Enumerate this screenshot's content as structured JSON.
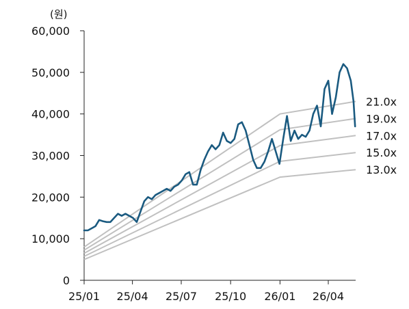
{
  "chart_data": {
    "type": "line",
    "ylabel": "(원)",
    "xlabel": "",
    "title": "",
    "ylim": [
      0,
      60000
    ],
    "xlim": [
      "2025-01-01",
      "2026-05-22"
    ],
    "yticks": [
      "0",
      "10,000",
      "20,000",
      "30,000",
      "40,000",
      "50,000",
      "60,000"
    ],
    "ytick_values": [
      0,
      10000,
      20000,
      30000,
      40000,
      50000,
      60000
    ],
    "xticks": [
      "25/01",
      "25/04",
      "25/07",
      "25/10",
      "26/01",
      "26/04"
    ],
    "xtick_values": [
      "2025-01-01",
      "2025-04-01",
      "2025-07-01",
      "2025-10-01",
      "2026-01-01",
      "2026-04-01"
    ],
    "grid": false,
    "series": [
      {
        "name": "",
        "color": "#1a5a80",
        "points": [
          [
            "2025-01-01",
            12000
          ],
          [
            "2025-01-08",
            12000
          ],
          [
            "2025-01-15",
            12500
          ],
          [
            "2025-01-22",
            13000
          ],
          [
            "2025-01-29",
            14500
          ],
          [
            "2025-02-05",
            14200
          ],
          [
            "2025-02-12",
            14000
          ],
          [
            "2025-02-19",
            14000
          ],
          [
            "2025-02-26",
            15000
          ],
          [
            "2025-03-05",
            16000
          ],
          [
            "2025-03-12",
            15500
          ],
          [
            "2025-03-19",
            16000
          ],
          [
            "2025-03-26",
            15500
          ],
          [
            "2025-04-02",
            15000
          ],
          [
            "2025-04-09",
            14000
          ],
          [
            "2025-04-16",
            16500
          ],
          [
            "2025-04-23",
            19000
          ],
          [
            "2025-04-30",
            20000
          ],
          [
            "2025-05-07",
            19500
          ],
          [
            "2025-05-14",
            20500
          ],
          [
            "2025-05-21",
            21000
          ],
          [
            "2025-05-28",
            21500
          ],
          [
            "2025-06-04",
            22000
          ],
          [
            "2025-06-11",
            21500
          ],
          [
            "2025-06-18",
            22500
          ],
          [
            "2025-06-25",
            23000
          ],
          [
            "2025-07-02",
            24000
          ],
          [
            "2025-07-09",
            25500
          ],
          [
            "2025-07-16",
            26000
          ],
          [
            "2025-07-23",
            23000
          ],
          [
            "2025-07-30",
            23000
          ],
          [
            "2025-08-06",
            26500
          ],
          [
            "2025-08-13",
            29000
          ],
          [
            "2025-08-20",
            31000
          ],
          [
            "2025-08-27",
            32500
          ],
          [
            "2025-09-03",
            31500
          ],
          [
            "2025-09-10",
            32500
          ],
          [
            "2025-09-17",
            35500
          ],
          [
            "2025-09-24",
            33500
          ],
          [
            "2025-10-01",
            33000
          ],
          [
            "2025-10-08",
            34000
          ],
          [
            "2025-10-15",
            37500
          ],
          [
            "2025-10-22",
            38000
          ],
          [
            "2025-10-29",
            36000
          ],
          [
            "2025-11-05",
            32500
          ],
          [
            "2025-11-12",
            29000
          ],
          [
            "2025-11-19",
            27000
          ],
          [
            "2025-11-26",
            27000
          ],
          [
            "2025-12-03",
            28500
          ],
          [
            "2025-12-10",
            31000
          ],
          [
            "2025-12-17",
            34000
          ],
          [
            "2025-12-24",
            31000
          ],
          [
            "2025-12-31",
            28000
          ],
          [
            "2026-01-07",
            34000
          ],
          [
            "2026-01-14",
            39500
          ],
          [
            "2026-01-21",
            33500
          ],
          [
            "2026-01-28",
            36000
          ],
          [
            "2026-02-04",
            34000
          ],
          [
            "2026-02-11",
            35000
          ],
          [
            "2026-02-18",
            34500
          ],
          [
            "2026-02-25",
            36000
          ],
          [
            "2026-03-04",
            40000
          ],
          [
            "2026-03-11",
            42000
          ],
          [
            "2026-03-18",
            37000
          ],
          [
            "2026-03-25",
            46000
          ],
          [
            "2026-04-01",
            48000
          ],
          [
            "2026-04-08",
            40000
          ],
          [
            "2026-04-15",
            44000
          ],
          [
            "2026-04-22",
            50000
          ],
          [
            "2026-04-29",
            52000
          ],
          [
            "2026-05-06",
            51000
          ],
          [
            "2026-05-13",
            48000
          ],
          [
            "2026-05-18",
            43000
          ],
          [
            "2026-05-21",
            37000
          ]
        ]
      },
      {
        "name": "21.0x",
        "color": "#c0c0c0",
        "points": [
          [
            "2025-01-01",
            8000
          ],
          [
            "2026-01-01",
            40000
          ],
          [
            "2026-05-22",
            43000
          ]
        ]
      },
      {
        "name": "19.0x",
        "color": "#c0c0c0",
        "points": [
          [
            "2025-01-01",
            7250
          ],
          [
            "2026-01-01",
            36200
          ],
          [
            "2026-05-22",
            38900
          ]
        ]
      },
      {
        "name": "17.0x",
        "color": "#c0c0c0",
        "points": [
          [
            "2025-01-01",
            6500
          ],
          [
            "2026-01-01",
            32400
          ],
          [
            "2026-05-22",
            34800
          ]
        ]
      },
      {
        "name": "15.0x",
        "color": "#c0c0c0",
        "points": [
          [
            "2025-01-01",
            5750
          ],
          [
            "2026-01-01",
            28600
          ],
          [
            "2026-05-22",
            30700
          ]
        ]
      },
      {
        "name": "13.0x",
        "color": "#c0c0c0",
        "points": [
          [
            "2025-01-01",
            5000
          ],
          [
            "2026-01-01",
            24800
          ],
          [
            "2026-05-22",
            26600
          ]
        ]
      }
    ],
    "band_labels": [
      "21.0x",
      "19.0x",
      "17.0x",
      "15.0x",
      "13.0x"
    ]
  }
}
